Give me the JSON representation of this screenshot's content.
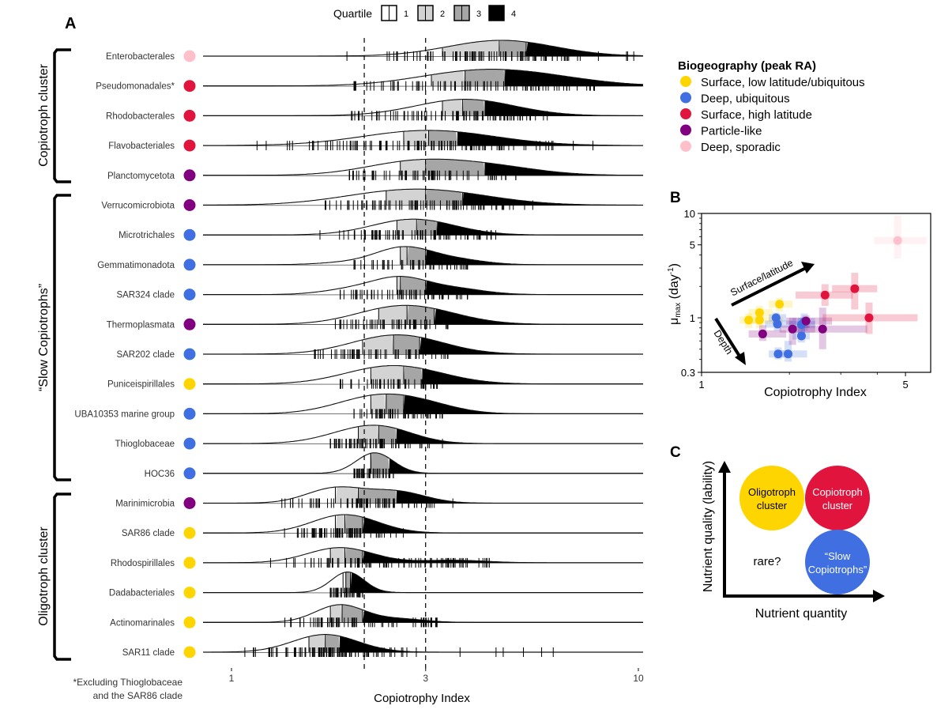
{
  "panel_labels": {
    "a": "A",
    "b": "B",
    "c": "C"
  },
  "quartile_legend": {
    "title": "Quartile",
    "items": [
      {
        "label": "1",
        "color": "#ffffff"
      },
      {
        "label": "2",
        "color": "#d3d3d3"
      },
      {
        "label": "3",
        "color": "#a6a6a6"
      },
      {
        "label": "4",
        "color": "#000000"
      }
    ]
  },
  "biogeography_legend": {
    "title": "Biogeography (peak RA)",
    "items": [
      {
        "key": "surface_low",
        "label": "Surface, low latitude/ubiquitous",
        "color": "#FFD500"
      },
      {
        "key": "deep_ubiq",
        "label": "Deep, ubiquitous",
        "color": "#3F6FE0"
      },
      {
        "key": "surface_high",
        "label": "Surface, high latitude",
        "color": "#E0143C"
      },
      {
        "key": "particle",
        "label": "Particle-like",
        "color": "#800080"
      },
      {
        "key": "deep_sporadic",
        "label": "Deep, sporadic",
        "color": "#FFC0CB"
      }
    ]
  },
  "footnote": [
    "*Excluding Thioglobaceae",
    "and the SAR86 clade"
  ],
  "chart_data": [
    {
      "type": "ridgeline",
      "panel": "A",
      "title": "",
      "xlabel": "Copiotrophy Index",
      "xscale": "log",
      "xlim": [
        1,
        10
      ],
      "xticks": [
        1,
        3,
        10
      ],
      "xtick_labels": [
        "1",
        "3",
        "10"
      ],
      "reference_lines": [
        2.12,
        3
      ],
      "groups": [
        {
          "label": "Copiotroph cluster",
          "rows": [
            0,
            4
          ]
        },
        {
          "label": "“Slow Copiotrophs”",
          "rows": [
            5,
            14
          ]
        },
        {
          "label": "Oligotroph cluster",
          "rows": [
            15,
            20
          ]
        }
      ],
      "series": [
        {
          "name": "Enterobacterales",
          "biogeo": "deep_sporadic",
          "quartiles": [
            3.3,
            4.55,
            5.3
          ],
          "peaks": [
            [
              4.6,
              1.0
            ]
          ],
          "range": [
            1.9,
            9.8
          ],
          "spread": 0.13
        },
        {
          "name": "Pseudomonadales*",
          "biogeo": "surface_high",
          "quartiles": [
            3.1,
            3.75,
            4.7
          ],
          "peaks": [
            [
              3.8,
              0.8
            ],
            [
              5.6,
              0.55
            ]
          ],
          "range": [
            2.0,
            7.8
          ],
          "spread": 0.14
        },
        {
          "name": "Rhodobacterales",
          "biogeo": "surface_high",
          "quartiles": [
            3.3,
            3.7,
            4.2
          ],
          "peaks": [
            [
              3.75,
              1.1
            ]
          ],
          "range": [
            1.9,
            6.2
          ],
          "spread": 0.12
        },
        {
          "name": "Flavobacteriales",
          "biogeo": "surface_high",
          "quartiles": [
            2.65,
            3.05,
            3.6
          ],
          "peaks": [
            [
              3.05,
              0.9
            ]
          ],
          "range": [
            1.15,
            8.2
          ],
          "spread": 0.16
        },
        {
          "name": "Planctomycetota",
          "biogeo": "particle",
          "quartiles": [
            2.6,
            3.0,
            4.2
          ],
          "peaks": [
            [
              2.8,
              0.85
            ],
            [
              4.3,
              0.55
            ]
          ],
          "range": [
            1.95,
            5.0
          ],
          "spread": 0.12
        },
        {
          "name": "Verrucomicrobiota",
          "biogeo": "particle",
          "quartiles": [
            2.4,
            3.0,
            3.7
          ],
          "peaks": [
            [
              2.4,
              0.6
            ],
            [
              3.4,
              0.6
            ]
          ],
          "range": [
            1.7,
            5.5
          ],
          "spread": 0.14
        },
        {
          "name": "Microtrichales",
          "biogeo": "deep_ubiq",
          "quartiles": [
            2.55,
            2.85,
            3.2
          ],
          "peaks": [
            [
              2.8,
              1.0
            ]
          ],
          "range": [
            1.65,
            4.5
          ],
          "spread": 0.1
        },
        {
          "name": "Gemmatimonadota",
          "biogeo": "deep_ubiq",
          "quartiles": [
            2.6,
            2.7,
            3.0
          ],
          "peaks": [
            [
              2.65,
              1.3
            ],
            [
              3.6,
              0.35
            ],
            [
              1.9,
              0.15
            ]
          ],
          "range": [
            2.0,
            3.8
          ],
          "spread": 0.07
        },
        {
          "name": "SAR324 clade",
          "biogeo": "deep_ubiq",
          "quartiles": [
            2.55,
            2.6,
            3.0
          ],
          "peaks": [
            [
              2.6,
              1.25
            ],
            [
              3.6,
              0.4
            ],
            [
              1.95,
              0.35
            ]
          ],
          "range": [
            1.85,
            3.8
          ],
          "spread": 0.07
        },
        {
          "name": "Thermoplasmata",
          "biogeo": "particle",
          "quartiles": [
            2.3,
            2.7,
            3.15
          ],
          "peaks": [
            [
              2.45,
              1.0
            ],
            [
              3.1,
              0.7
            ]
          ],
          "range": [
            1.8,
            3.4
          ],
          "spread": 0.1
        },
        {
          "name": "SAR202 clade",
          "biogeo": "deep_ubiq",
          "quartiles": [
            2.1,
            2.5,
            2.9
          ],
          "peaks": [
            [
              2.3,
              0.8
            ],
            [
              2.8,
              0.9
            ]
          ],
          "range": [
            1.6,
            3.4
          ],
          "spread": 0.1
        },
        {
          "name": "Puniceispirillales",
          "biogeo": "surface_low",
          "quartiles": [
            2.2,
            2.65,
            2.95
          ],
          "peaks": [
            [
              2.25,
              0.85
            ],
            [
              2.85,
              0.75
            ]
          ],
          "range": [
            1.85,
            3.2
          ],
          "spread": 0.1
        },
        {
          "name": "UBA10353 marine group",
          "biogeo": "deep_ubiq",
          "quartiles": [
            2.2,
            2.4,
            2.65
          ],
          "peaks": [
            [
              2.35,
              1.1
            ],
            [
              3.0,
              0.7
            ],
            [
              1.9,
              0.45
            ]
          ],
          "range": [
            2.0,
            3.3
          ],
          "spread": 0.08
        },
        {
          "name": "Thioglobaceae",
          "biogeo": "deep_ubiq",
          "quartiles": [
            2.05,
            2.3,
            2.55
          ],
          "peaks": [
            [
              2.35,
              1.1
            ],
            [
              1.9,
              0.5
            ]
          ],
          "range": [
            1.75,
            3.3
          ],
          "spread": 0.08
        },
        {
          "name": "HOC36",
          "biogeo": "deep_ubiq",
          "quartiles": [
            2.2,
            2.2,
            2.45
          ],
          "peaks": [
            [
              2.25,
              1.9
            ]
          ],
          "range": [
            2.0,
            2.5
          ],
          "spread": 0.045
        },
        {
          "name": "Marinimicrobia",
          "biogeo": "particle",
          "quartiles": [
            1.8,
            2.05,
            2.55
          ],
          "peaks": [
            [
              1.8,
              1.0
            ],
            [
              2.55,
              0.75
            ]
          ],
          "range": [
            1.3,
            3.5
          ],
          "spread": 0.07
        },
        {
          "name": "SAR86 clade",
          "biogeo": "surface_low",
          "quartiles": [
            1.8,
            1.9,
            2.1
          ],
          "peaks": [
            [
              1.9,
              1.4
            ]
          ],
          "range": [
            1.35,
            2.75
          ],
          "spread": 0.08
        },
        {
          "name": "Rhodospirillales",
          "biogeo": "surface_low",
          "quartiles": [
            1.75,
            1.9,
            2.1
          ],
          "peaks": [
            [
              1.85,
              0.9
            ],
            [
              3.5,
              0.15
            ]
          ],
          "range": [
            1.15,
            4.3
          ],
          "spread": 0.08
        },
        {
          "name": "Dadabacteriales",
          "biogeo": "surface_low",
          "quartiles": [
            1.88,
            1.91,
            1.96
          ],
          "peaks": [
            [
              1.93,
              2.4
            ]
          ],
          "range": [
            1.75,
            2.1
          ],
          "spread": 0.04
        },
        {
          "name": "Actinomarinales",
          "biogeo": "surface_low",
          "quartiles": [
            1.75,
            1.87,
            2.1
          ],
          "peaks": [
            [
              1.85,
              1.3
            ],
            [
              2.6,
              0.25
            ]
          ],
          "range": [
            1.35,
            3.2
          ],
          "spread": 0.06
        },
        {
          "name": "SAR11 clade",
          "biogeo": "surface_low",
          "quartiles": [
            1.55,
            1.7,
            1.85
          ],
          "peaks": [
            [
              1.7,
              1.3
            ]
          ],
          "range": [
            1.05,
            6.5
          ],
          "spread": 0.08
        }
      ]
    },
    {
      "type": "scatter",
      "panel": "B",
      "xlabel": "Copiotrophy Index",
      "ylabel": "μmax (day⁻¹)",
      "ylabel_main": "μ",
      "ylabel_sub": "max",
      "ylabel_rest": " (day",
      "ylabel_sup": "-1",
      "ylabel_end": ")",
      "xscale": "log",
      "yscale": "log",
      "xlim": [
        1,
        6.1
      ],
      "ylim": [
        0.3,
        10
      ],
      "xticks": [
        1,
        5
      ],
      "yticks": [
        0.3,
        1,
        5,
        10
      ],
      "annotations": [
        "Surface/latitude",
        "Depth"
      ],
      "points": [
        {
          "x": 1.45,
          "y": 0.95,
          "xerr": [
            1.35,
            1.58
          ],
          "yerr": [
            0.8,
            1.1
          ],
          "biogeo": "surface_low"
        },
        {
          "x": 1.58,
          "y": 1.12,
          "xerr": [
            1.45,
            1.75
          ],
          "yerr": [
            0.95,
            1.3
          ],
          "biogeo": "surface_low"
        },
        {
          "x": 1.58,
          "y": 0.95,
          "xerr": [
            1.45,
            1.9
          ],
          "yerr": [
            0.8,
            1.1
          ],
          "biogeo": "surface_low"
        },
        {
          "x": 1.85,
          "y": 1.35,
          "xerr": [
            1.7,
            2.05
          ],
          "yerr": [
            1.15,
            1.55
          ],
          "biogeo": "surface_low"
        },
        {
          "x": 1.62,
          "y": 0.7,
          "xerr": [
            1.45,
            1.95
          ],
          "yerr": [
            0.6,
            0.85
          ],
          "biogeo": "particle"
        },
        {
          "x": 1.8,
          "y": 1.0,
          "xerr": [
            1.7,
            1.95
          ],
          "yerr": [
            0.88,
            1.12
          ],
          "biogeo": "deep_ubiq"
        },
        {
          "x": 1.82,
          "y": 0.87,
          "xerr": [
            1.65,
            2.05
          ],
          "yerr": [
            0.75,
            1.0
          ],
          "biogeo": "deep_ubiq"
        },
        {
          "x": 2.05,
          "y": 0.78,
          "xerr": [
            1.85,
            2.45
          ],
          "yerr": [
            0.55,
            1.0
          ],
          "biogeo": "particle"
        },
        {
          "x": 2.2,
          "y": 0.86,
          "xerr": [
            2.0,
            2.45
          ],
          "yerr": [
            0.7,
            1.0
          ],
          "biogeo": "deep_ubiq"
        },
        {
          "x": 2.25,
          "y": 0.92,
          "xerr": [
            2.05,
            2.45
          ],
          "yerr": [
            0.75,
            1.1
          ],
          "biogeo": "deep_ubiq"
        },
        {
          "x": 2.28,
          "y": 0.93,
          "xerr": [
            1.95,
            2.8
          ],
          "yerr": [
            0.8,
            1.05
          ],
          "biogeo": "particle"
        },
        {
          "x": 2.2,
          "y": 0.67,
          "xerr": [
            2.05,
            2.35
          ],
          "yerr": [
            0.58,
            0.8
          ],
          "biogeo": "deep_ubiq"
        },
        {
          "x": 2.6,
          "y": 0.78,
          "xerr": [
            2.1,
            3.7
          ],
          "yerr": [
            0.5,
            1.25
          ],
          "biogeo": "particle"
        },
        {
          "x": 1.83,
          "y": 0.45,
          "xerr": [
            1.7,
            1.98
          ],
          "yerr": [
            0.4,
            0.52
          ],
          "biogeo": "deep_ubiq"
        },
        {
          "x": 1.98,
          "y": 0.45,
          "xerr": [
            1.8,
            2.3
          ],
          "yerr": [
            0.38,
            0.6
          ],
          "biogeo": "deep_ubiq"
        },
        {
          "x": 2.65,
          "y": 1.65,
          "xerr": [
            2.1,
            3.3
          ],
          "yerr": [
            1.3,
            2.1
          ],
          "biogeo": "surface_high"
        },
        {
          "x": 3.35,
          "y": 1.9,
          "xerr": [
            2.8,
            4.0
          ],
          "yerr": [
            1.2,
            2.7
          ],
          "biogeo": "surface_high"
        },
        {
          "x": 3.75,
          "y": 1.0,
          "xerr": [
            2.6,
            5.5
          ],
          "yerr": [
            0.7,
            1.4
          ],
          "biogeo": "surface_high"
        },
        {
          "x": 4.7,
          "y": 5.5,
          "xerr": [
            3.9,
            5.9
          ],
          "yerr": [
            3.7,
            9.5
          ],
          "biogeo": "deep_sporadic"
        }
      ]
    },
    {
      "type": "diagram",
      "panel": "C",
      "xlabel": "Nutrient quantity",
      "ylabel": "Nutrient quality (lability)",
      "circles": [
        {
          "lines": [
            "Oligotroph",
            "cluster"
          ],
          "color": "#FFD500",
          "text_color": "#000000",
          "quadrant": "top-left"
        },
        {
          "lines": [
            "Copiotroph",
            "cluster"
          ],
          "color": "#E0143C",
          "text_color": "#ffffff",
          "quadrant": "top-right"
        },
        {
          "lines": [
            "“Slow",
            "Copiotrophs”"
          ],
          "color": "#3F6FE0",
          "text_color": "#ffffff",
          "quadrant": "bottom-right"
        }
      ],
      "bottom_left_text": "rare?"
    }
  ]
}
